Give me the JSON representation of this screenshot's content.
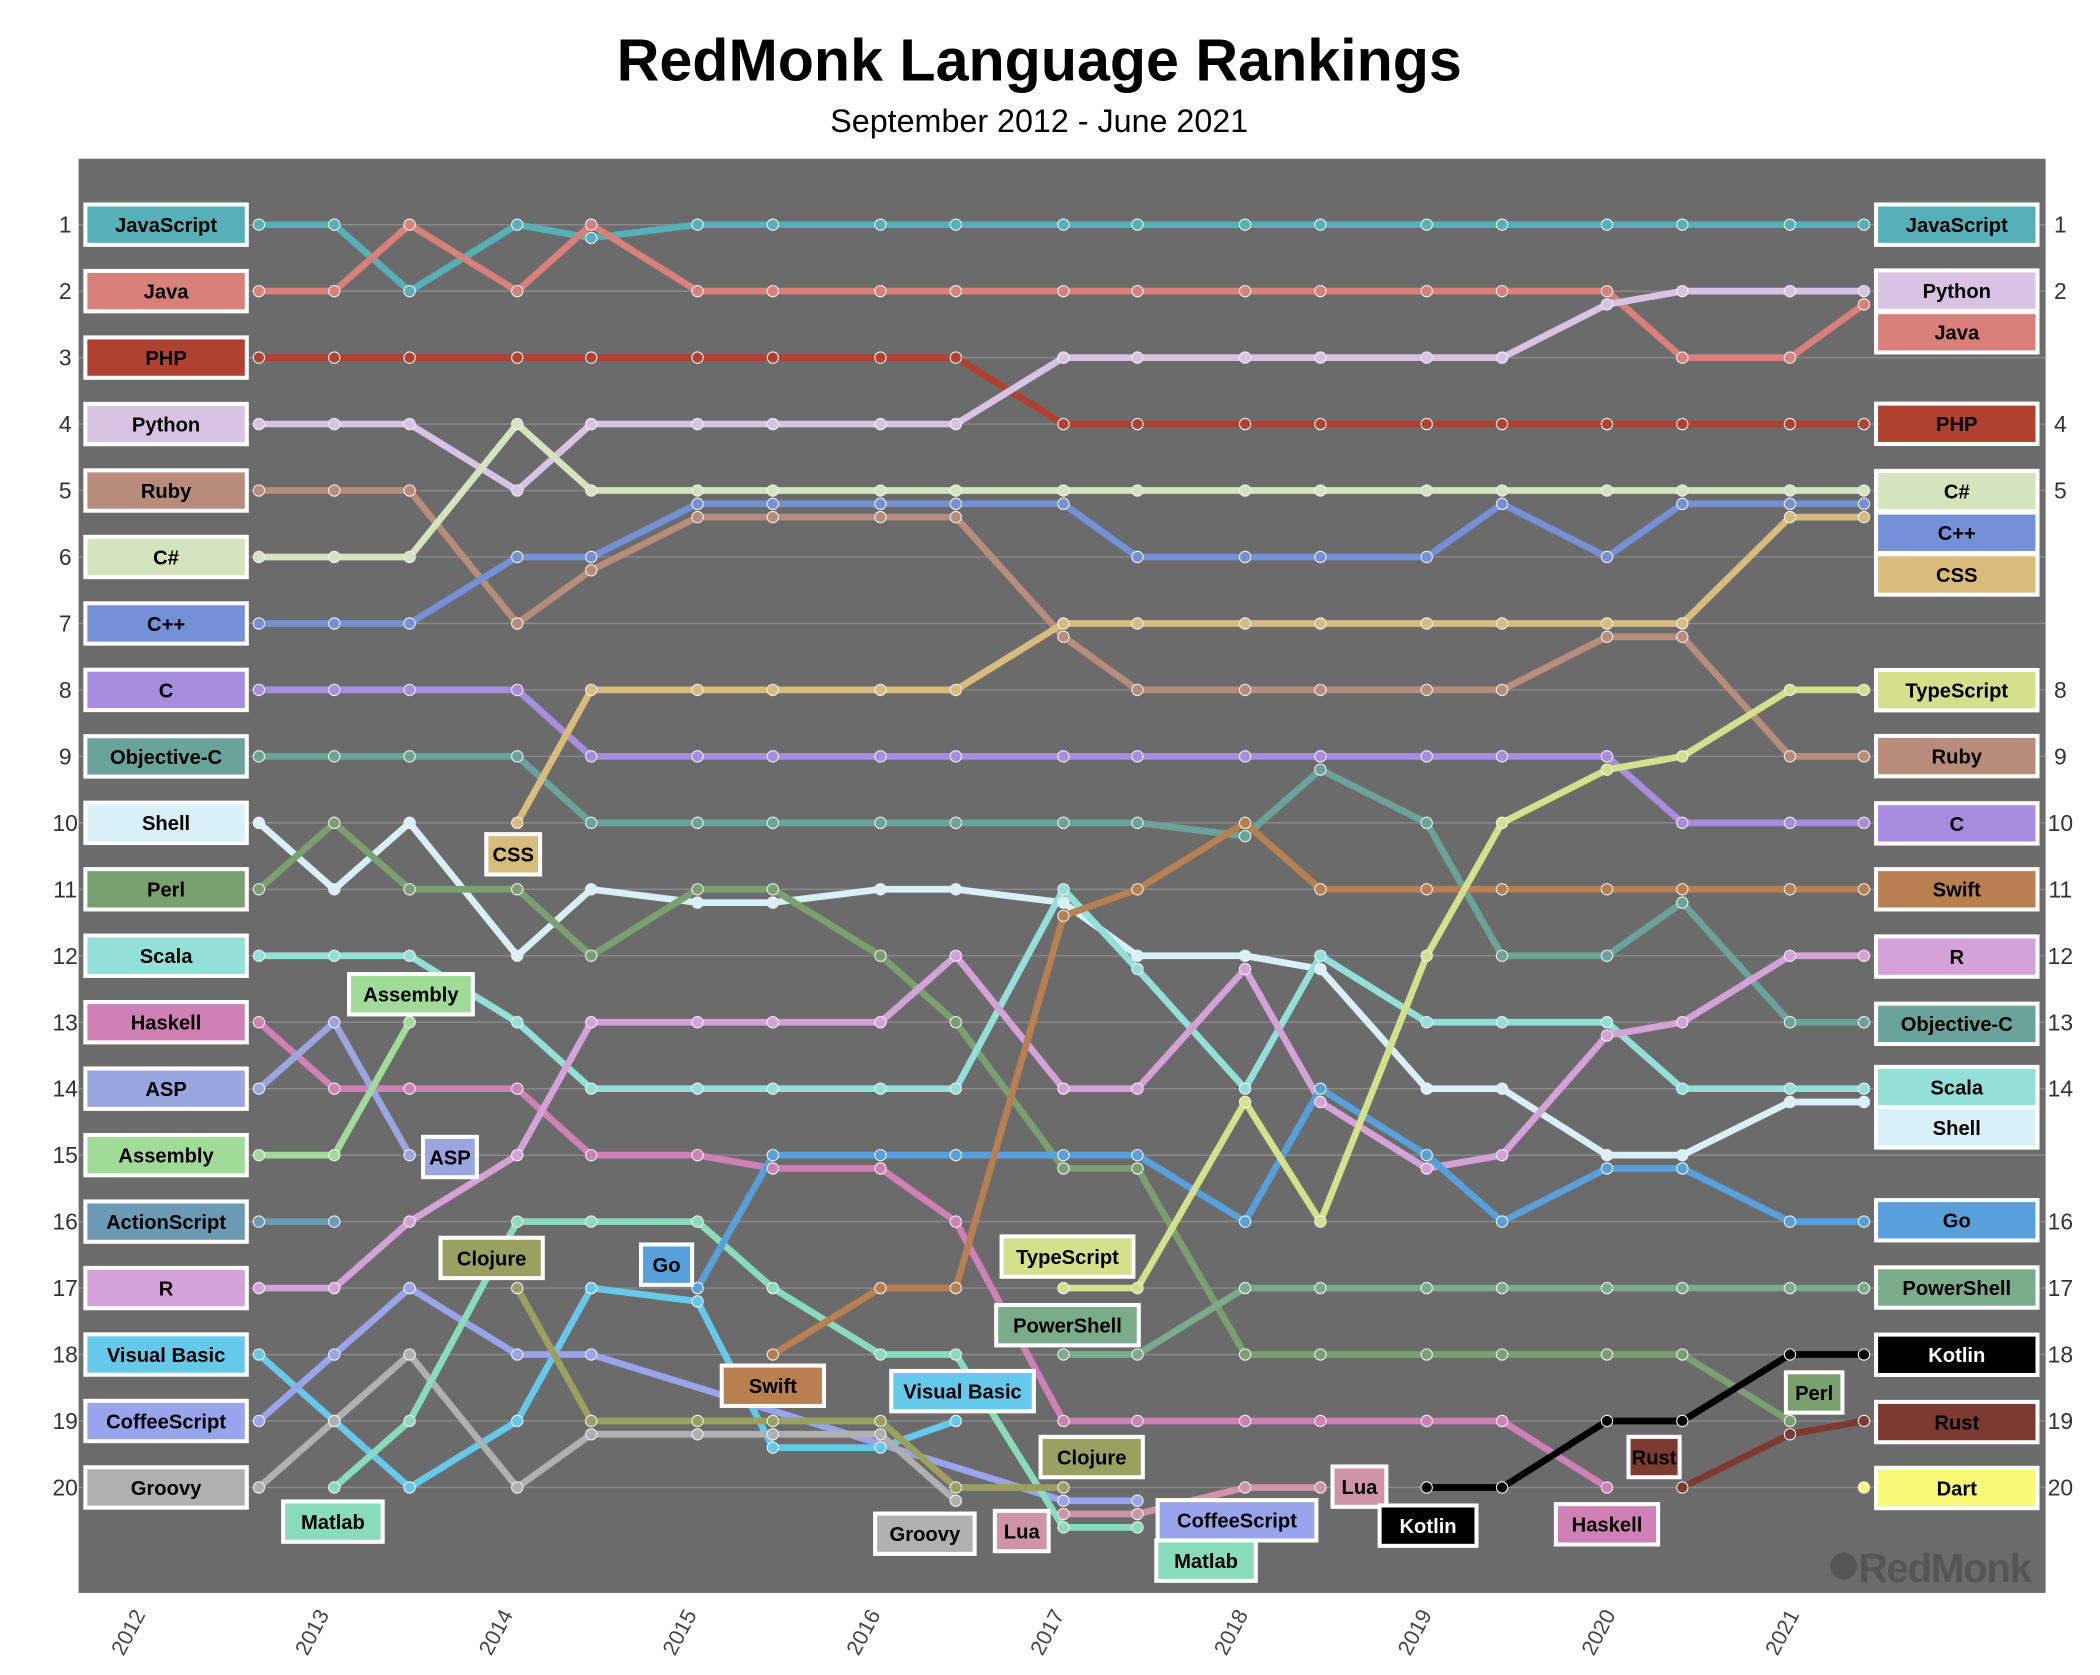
{
  "chart_data": {
    "type": "line",
    "title": "RedMonk Language Rankings",
    "subtitle": "September 2012 - June 2021",
    "x": [
      "2012-09",
      "2013-01",
      "2013-06",
      "2014-01",
      "2014-06",
      "2015-01",
      "2015-06",
      "2016-01",
      "2016-06",
      "2017-01",
      "2017-06",
      "2018-01",
      "2018-06",
      "2019-01",
      "2019-06",
      "2020-01",
      "2020-06",
      "2021-01",
      "2021-06"
    ],
    "x_tick_labels": [
      "2012",
      "2013",
      "2014",
      "2015",
      "2016",
      "2017",
      "2018",
      "2019",
      "2020",
      "2021"
    ],
    "y_tick_labels_left": [
      "1",
      "2",
      "3",
      "4",
      "5",
      "6",
      "7",
      "8",
      "9",
      "10",
      "11",
      "12",
      "13",
      "14",
      "15",
      "16",
      "17",
      "18",
      "19",
      "20"
    ],
    "y_tick_labels_right": [
      "1",
      "2",
      "4",
      "5",
      "8",
      "9",
      "10",
      "11",
      "12",
      "13",
      "14",
      "16",
      "17",
      "18",
      "19",
      "20"
    ],
    "ylim": [
      1,
      20
    ],
    "y_inverted": true,
    "grid": true,
    "background": "#6b6b6b",
    "logo": "RedMonk",
    "series": [
      {
        "name": "JavaScript",
        "color": "#55b0b8",
        "values": [
          1,
          1,
          2,
          1,
          1.2,
          1,
          1,
          1,
          1,
          1,
          1,
          1,
          1,
          1,
          1,
          1,
          1,
          1,
          1
        ]
      },
      {
        "name": "Java",
        "color": "#d9807a",
        "values": [
          2,
          2,
          1,
          2,
          1,
          2,
          2,
          2,
          2,
          2,
          2,
          2,
          2,
          2,
          2,
          2,
          3,
          3,
          2.2
        ]
      },
      {
        "name": "PHP",
        "color": "#b04030",
        "values": [
          3,
          3,
          3,
          3,
          3,
          3,
          3,
          3,
          3,
          4,
          4,
          4,
          4,
          4,
          4,
          4,
          4,
          4,
          4
        ]
      },
      {
        "name": "Python",
        "color": "#d8c3e5",
        "values": [
          4,
          4,
          4,
          5,
          4,
          4,
          4,
          4,
          4,
          3,
          3,
          3,
          3,
          3,
          3,
          2.2,
          2,
          2,
          2
        ]
      },
      {
        "name": "Ruby",
        "color": "#b88c7a",
        "values": [
          5,
          5,
          5,
          7,
          6.2,
          5.4,
          5.4,
          5.4,
          5.4,
          7.2,
          8,
          8,
          8,
          8,
          8,
          7.2,
          7.2,
          9,
          9
        ]
      },
      {
        "name": "C#",
        "color": "#d4e4bc",
        "values": [
          6,
          6,
          6,
          4,
          5,
          5,
          5,
          5,
          5,
          5,
          5,
          5,
          5,
          5,
          5,
          5,
          5,
          5,
          5
        ]
      },
      {
        "name": "C++",
        "color": "#7490d6",
        "values": [
          7,
          7,
          7,
          6,
          6,
          5.2,
          5.2,
          5.2,
          5.2,
          5.2,
          6,
          6,
          6,
          6,
          5.2,
          6,
          5.2,
          5.2,
          5.2
        ]
      },
      {
        "name": "C",
        "color": "#a78de0",
        "values": [
          8,
          8,
          8,
          8,
          9,
          9,
          9,
          9,
          9,
          9,
          9,
          9,
          9,
          9,
          9,
          9,
          10,
          10,
          10
        ]
      },
      {
        "name": "Objective-C",
        "color": "#6aa39a",
        "values": [
          9,
          9,
          9,
          9,
          10,
          10,
          10,
          10,
          10,
          10,
          10,
          10.2,
          9.2,
          10,
          12,
          12,
          11.2,
          13,
          13
        ]
      },
      {
        "name": "Shell",
        "color": "#d8f0f8",
        "values": [
          10,
          11,
          10,
          12,
          11,
          11.2,
          11.2,
          11,
          11,
          11.2,
          12,
          12,
          12.2,
          14,
          14,
          15,
          15,
          14.2,
          14.2
        ]
      },
      {
        "name": "Perl",
        "color": "#7aa070",
        "values": [
          11,
          10,
          11,
          11,
          12,
          11,
          11,
          12,
          13,
          15.2,
          15.2,
          18,
          18,
          18,
          18,
          18,
          18,
          19,
          null
        ]
      },
      {
        "name": "Scala",
        "color": "#92e0d8",
        "values": [
          12,
          12,
          12,
          13,
          14,
          14,
          14,
          14,
          14,
          11,
          12.2,
          14,
          12,
          13,
          13,
          13,
          14,
          14,
          14
        ]
      },
      {
        "name": "Haskell",
        "color": "#cf80b4",
        "values": [
          13,
          14,
          14,
          14,
          15,
          15,
          15.2,
          15.2,
          16,
          19,
          19,
          19,
          19,
          19,
          19,
          20,
          null,
          null,
          null
        ]
      },
      {
        "name": "ASP",
        "color": "#9aa6e0",
        "values": [
          14,
          13,
          15,
          null,
          null,
          null,
          null,
          null,
          null,
          null,
          null,
          null,
          null,
          null,
          null,
          null,
          null,
          null,
          null
        ]
      },
      {
        "name": "Assembly",
        "color": "#a0dc98",
        "values": [
          15,
          15,
          13,
          null,
          null,
          null,
          null,
          null,
          null,
          null,
          null,
          null,
          null,
          null,
          null,
          null,
          null,
          null,
          null
        ]
      },
      {
        "name": "ActionScript",
        "color": "#6a9ab4",
        "values": [
          16,
          16,
          null,
          null,
          null,
          null,
          null,
          null,
          null,
          null,
          null,
          null,
          null,
          null,
          null,
          null,
          null,
          null,
          null
        ]
      },
      {
        "name": "R",
        "color": "#d4a2d8",
        "values": [
          17,
          17,
          16,
          15,
          13,
          13,
          13,
          13,
          12,
          14,
          14,
          12.2,
          14.2,
          15.2,
          15,
          13.2,
          13,
          12,
          12
        ]
      },
      {
        "name": "Visual Basic",
        "color": "#66c8ea",
        "values": [
          18,
          19,
          20,
          19,
          17,
          17.2,
          19.4,
          19.4,
          19,
          null,
          null,
          null,
          null,
          null,
          null,
          null,
          null,
          null,
          null
        ]
      },
      {
        "name": "CoffeeScript",
        "color": "#98a4ec",
        "values": [
          19,
          18,
          17,
          18,
          18,
          null,
          null,
          null,
          null,
          20.2,
          20.2,
          null,
          null,
          null,
          null,
          null,
          null,
          null,
          null
        ]
      },
      {
        "name": "Groovy",
        "color": "#b0b0b0",
        "values": [
          20,
          19,
          18,
          20,
          19.2,
          19.2,
          19.2,
          19.2,
          20.2,
          null,
          null,
          null,
          null,
          null,
          null,
          null,
          null,
          null,
          null
        ]
      },
      {
        "name": "Matlab",
        "color": "#88dcbc",
        "values": [
          null,
          20,
          19,
          16,
          16,
          16,
          17,
          18,
          18,
          20.6,
          20.6,
          null,
          null,
          null,
          null,
          null,
          null,
          null,
          null
        ]
      },
      {
        "name": "Clojure",
        "color": "#9aa060",
        "values": [
          null,
          null,
          null,
          17,
          19,
          19,
          19,
          19,
          20,
          20,
          null,
          null,
          null,
          null,
          null,
          null,
          null,
          null,
          null
        ]
      },
      {
        "name": "CSS",
        "color": "#d8bc7c",
        "values": [
          null,
          null,
          null,
          10,
          8,
          8,
          8,
          8,
          8,
          7,
          7,
          7,
          7,
          7,
          7,
          7,
          7,
          5.4,
          5.4
        ]
      },
      {
        "name": "Go",
        "color": "#58a0dc",
        "values": [
          null,
          null,
          null,
          null,
          null,
          17,
          15,
          15,
          15,
          15,
          15,
          16,
          14,
          15,
          16,
          15.2,
          15.2,
          16,
          16
        ]
      },
      {
        "name": "Swift",
        "color": "#b88050",
        "values": [
          null,
          null,
          null,
          null,
          null,
          null,
          18,
          17,
          17,
          11.4,
          11,
          10,
          11,
          11,
          11,
          11,
          11,
          11,
          11
        ]
      },
      {
        "name": "TypeScript",
        "color": "#d4e08c",
        "values": [
          null,
          null,
          null,
          null,
          null,
          null,
          null,
          null,
          null,
          17,
          17,
          14.2,
          16,
          12,
          10,
          9.2,
          9,
          8,
          8
        ]
      },
      {
        "name": "PowerShell",
        "color": "#7aac8c",
        "values": [
          null,
          null,
          null,
          null,
          null,
          null,
          null,
          null,
          null,
          18,
          18,
          17,
          17,
          17,
          17,
          17,
          17,
          17,
          17
        ]
      },
      {
        "name": "Lua",
        "color": "#d094a8",
        "values": [
          null,
          null,
          null,
          null,
          null,
          null,
          null,
          null,
          null,
          20.4,
          20.4,
          20,
          20,
          null,
          null,
          null,
          null,
          null,
          null
        ]
      },
      {
        "name": "Kotlin",
        "color": "#000000",
        "values": [
          null,
          null,
          null,
          null,
          null,
          null,
          null,
          null,
          null,
          null,
          null,
          null,
          null,
          20,
          20,
          19,
          19,
          18,
          18
        ]
      },
      {
        "name": "Rust",
        "color": "#7c3a30",
        "values": [
          null,
          null,
          null,
          null,
          null,
          null,
          null,
          null,
          null,
          null,
          null,
          null,
          null,
          null,
          null,
          null,
          20,
          19.2,
          19
        ]
      },
      {
        "name": "Dart",
        "color": "#fafa78",
        "values": [
          null,
          null,
          null,
          null,
          null,
          null,
          null,
          null,
          null,
          null,
          null,
          null,
          null,
          null,
          null,
          null,
          null,
          null,
          20
        ]
      }
    ],
    "left_labels": [
      "JavaScript",
      "Java",
      "PHP",
      "Python",
      "Ruby",
      "C#",
      "C++",
      "C",
      "Objective-C",
      "Shell",
      "Perl",
      "Scala",
      "Haskell",
      "ASP",
      "Assembly",
      "ActionScript",
      "R",
      "Visual Basic",
      "CoffeeScript",
      "Groovy"
    ],
    "right_labels": [
      "JavaScript",
      "Python",
      "Java",
      "PHP",
      "C#",
      "C++",
      "CSS",
      "TypeScript",
      "Ruby",
      "C",
      "Swift",
      "R",
      "Objective-C",
      "Scala",
      "Shell",
      "Go",
      "PowerShell",
      "Kotlin",
      "Rust",
      "Dart"
    ],
    "inline_labels": [
      "CSS",
      "Assembly",
      "ASP",
      "Clojure",
      "Go",
      "Matlab",
      "Swift",
      "Visual Basic",
      "Groovy",
      "Lua",
      "TypeScript",
      "PowerShell",
      "Clojure",
      "CoffeeScript",
      "Matlab",
      "Lua",
      "Kotlin",
      "Haskell",
      "Rust",
      "Perl"
    ]
  }
}
